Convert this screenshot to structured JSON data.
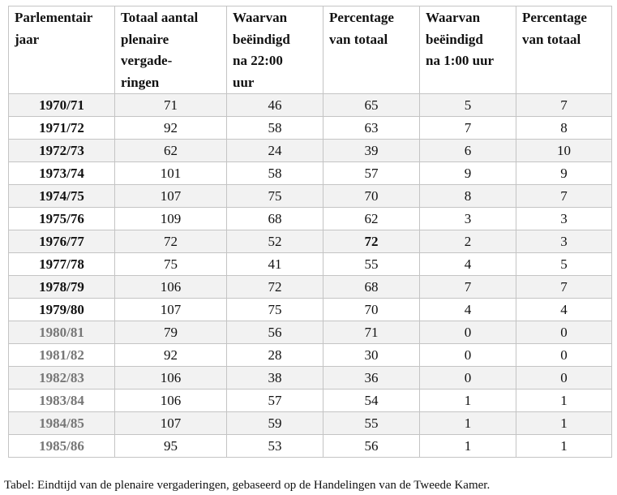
{
  "table": {
    "headers": [
      "Parlementair\njaar",
      "Totaal aantal\nplenaire\nvergade-\nringen",
      "Waarvan\nbeëindigd\nna 22:00\nuur",
      "Percentage\nvan totaal",
      "Waarvan\nbeëindigd\nna 1:00 uur",
      "Percentage\nvan totaal"
    ],
    "rows": [
      {
        "year": "1970/71",
        "total": "71",
        "after22": "46",
        "pct22": "65",
        "after1": "5",
        "pct1": "7"
      },
      {
        "year": "1971/72",
        "total": "92",
        "after22": "58",
        "pct22": "63",
        "after1": "7",
        "pct1": "8"
      },
      {
        "year": "1972/73",
        "total": "62",
        "after22": "24",
        "pct22": "39",
        "after1": "6",
        "pct1": "10"
      },
      {
        "year": "1973/74",
        "total": "101",
        "after22": "58",
        "pct22": "57",
        "after1": "9",
        "pct1": "9"
      },
      {
        "year": "1974/75",
        "total": "107",
        "after22": "75",
        "pct22": "70",
        "after1": "8",
        "pct1": "7"
      },
      {
        "year": "1975/76",
        "total": "109",
        "after22": "68",
        "pct22": "62",
        "after1": "3",
        "pct1": "3"
      },
      {
        "year": "1976/77",
        "total": "72",
        "after22": "52",
        "pct22": "72",
        "after1": "2",
        "pct1": "3"
      },
      {
        "year": "1977/78",
        "total": "75",
        "after22": "41",
        "pct22": "55",
        "after1": "4",
        "pct1": "5"
      },
      {
        "year": "1978/79",
        "total": "106",
        "after22": "72",
        "pct22": "68",
        "after1": "7",
        "pct1": "7"
      },
      {
        "year": "1979/80",
        "total": "107",
        "after22": "75",
        "pct22": "70",
        "after1": "4",
        "pct1": "4"
      },
      {
        "year": "1980/81",
        "total": "79",
        "after22": "56",
        "pct22": "71",
        "after1": "0",
        "pct1": "0"
      },
      {
        "year": "1981/82",
        "total": "92",
        "after22": "28",
        "pct22": "30",
        "after1": "0",
        "pct1": "0"
      },
      {
        "year": "1982/83",
        "total": "106",
        "after22": "38",
        "pct22": "36",
        "after1": "0",
        "pct1": "0"
      },
      {
        "year": "1983/84",
        "total": "106",
        "after22": "57",
        "pct22": "54",
        "after1": "1",
        "pct1": "1"
      },
      {
        "year": "1984/85",
        "total": "107",
        "after22": "59",
        "pct22": "55",
        "after1": "1",
        "pct1": "1"
      },
      {
        "year": "1985/86",
        "total": "95",
        "after22": "53",
        "pct22": "56",
        "after1": "1",
        "pct1": "1"
      }
    ]
  },
  "caption": "Tabel: Eindtijd van de plenaire vergaderingen, gebaseerd op de Handelingen van de Tweede Kamer.",
  "colors": {
    "alt_row_background": "#f2f2f2",
    "border": "#c4c4c4",
    "muted_year_text": "#777777"
  }
}
